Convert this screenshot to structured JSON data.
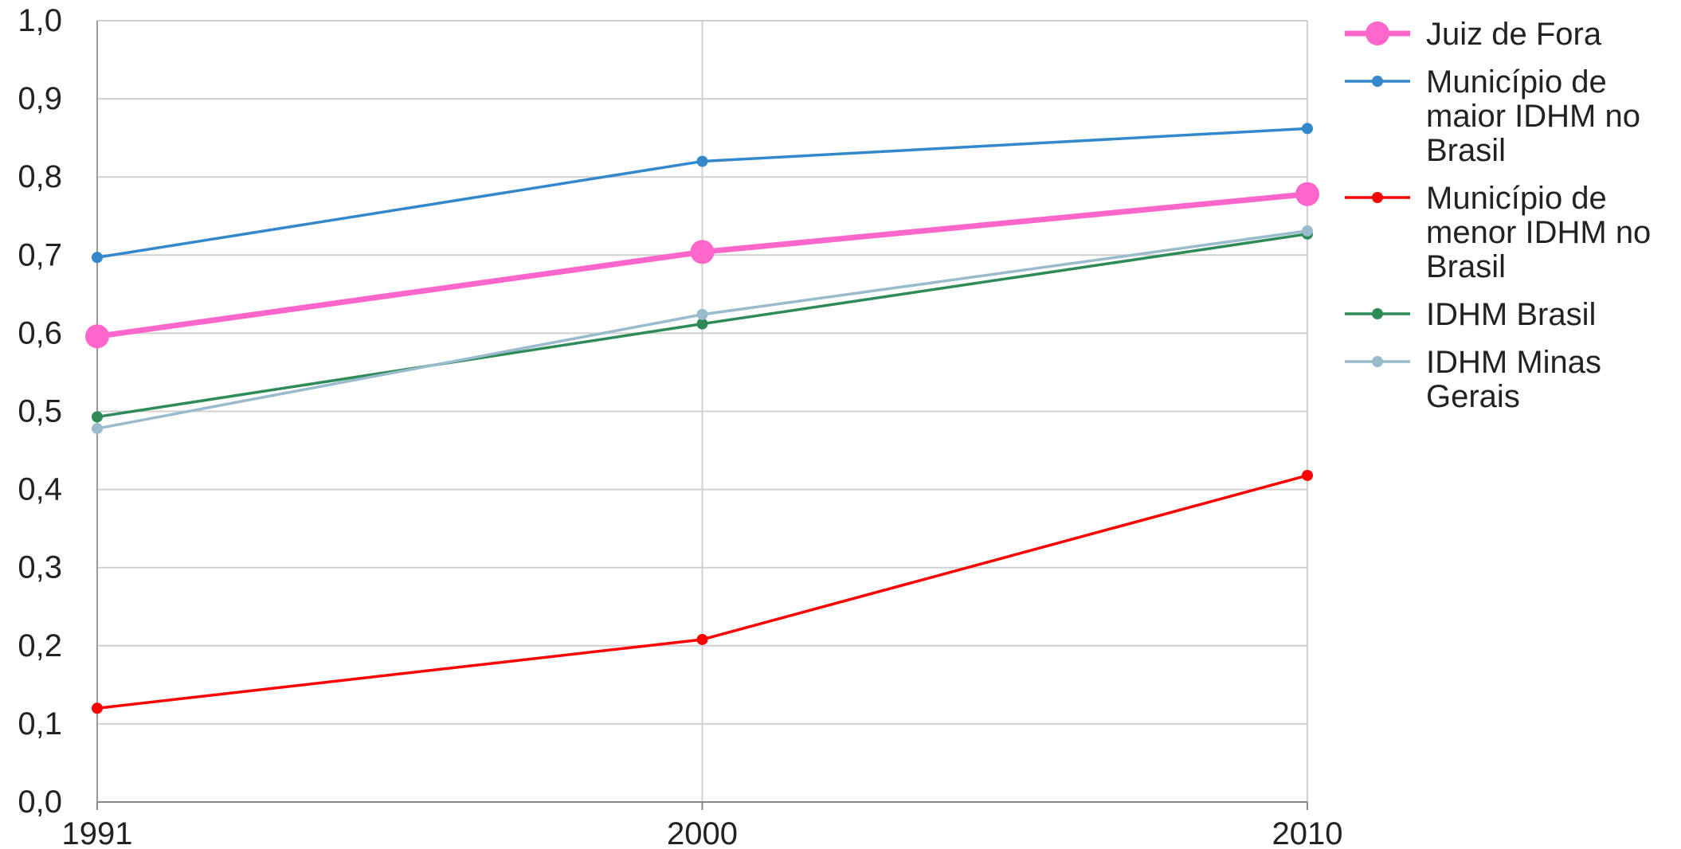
{
  "chart_data": {
    "type": "line",
    "x": [
      "1991",
      "2000",
      "2010"
    ],
    "ylim": [
      0,
      1
    ],
    "yticks": [
      "0,0",
      "0,1",
      "0,2",
      "0,3",
      "0,4",
      "0,5",
      "0,6",
      "0,7",
      "0,8",
      "0,9",
      "1,0"
    ],
    "grid": true,
    "legend_position": "right",
    "series": [
      {
        "name": "Juiz de Fora",
        "legend_lines": [
          "Juiz de Fora"
        ],
        "color": "#ff66cc",
        "emphasis": true,
        "values": [
          0.596,
          0.704,
          0.778
        ]
      },
      {
        "name": "Município de maior IDHM no Brasil",
        "legend_lines": [
          "Município de",
          "maior IDHM no",
          "Brasil"
        ],
        "color": "#3388cc",
        "emphasis": false,
        "values": [
          0.697,
          0.82,
          0.862
        ]
      },
      {
        "name": "Município de menor IDHM no Brasil",
        "legend_lines": [
          "Município de",
          "menor IDHM no",
          "Brasil"
        ],
        "color": "#ff0000",
        "emphasis": false,
        "values": [
          0.12,
          0.208,
          0.418
        ]
      },
      {
        "name": "IDHM Brasil",
        "legend_lines": [
          "IDHM Brasil"
        ],
        "color": "#2e8b57",
        "emphasis": false,
        "values": [
          0.493,
          0.612,
          0.727
        ]
      },
      {
        "name": "IDHM Minas Gerais",
        "legend_lines": [
          "IDHM Minas",
          "Gerais"
        ],
        "color": "#99bbcc",
        "emphasis": false,
        "values": [
          0.478,
          0.624,
          0.731
        ]
      }
    ]
  }
}
